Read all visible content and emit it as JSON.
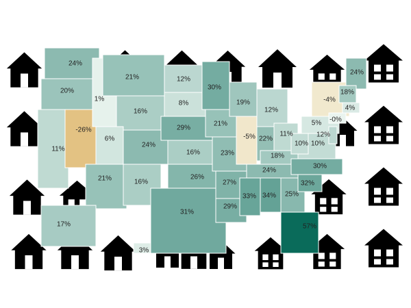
{
  "chart_data": {
    "type": "choropleth",
    "values": [
      24,
      20,
      11,
      -26,
      1,
      21,
      16,
      6,
      24,
      21,
      16,
      12,
      8,
      29,
      16,
      26,
      31,
      30,
      21,
      23,
      27,
      29,
      19,
      -5,
      12,
      22,
      11,
      18,
      24,
      33,
      34,
      25,
      57,
      32,
      30,
      10,
      10,
      5,
      -4,
      24,
      18,
      4,
      0,
      12,
      17,
      3
    ],
    "value_labels": [
      "24%",
      "20%",
      "11%",
      "-26%",
      "1%",
      "21%",
      "16%",
      "6%",
      "24%",
      "21%",
      "16%",
      "12%",
      "8%",
      "29%",
      "16%",
      "26%",
      "31%",
      "30%",
      "21%",
      "23%",
      "27%",
      "29%",
      "19%",
      "-5%",
      "12%",
      "22%",
      "11%",
      "18%",
      "24%",
      "33%",
      "34%",
      "25%",
      "57%",
      "32%",
      "30%",
      "10%",
      "10%",
      "5%",
      "-4%",
      "24%",
      "18%",
      "4%",
      "-0%",
      "12%",
      "17%",
      "3%"
    ]
  }
}
